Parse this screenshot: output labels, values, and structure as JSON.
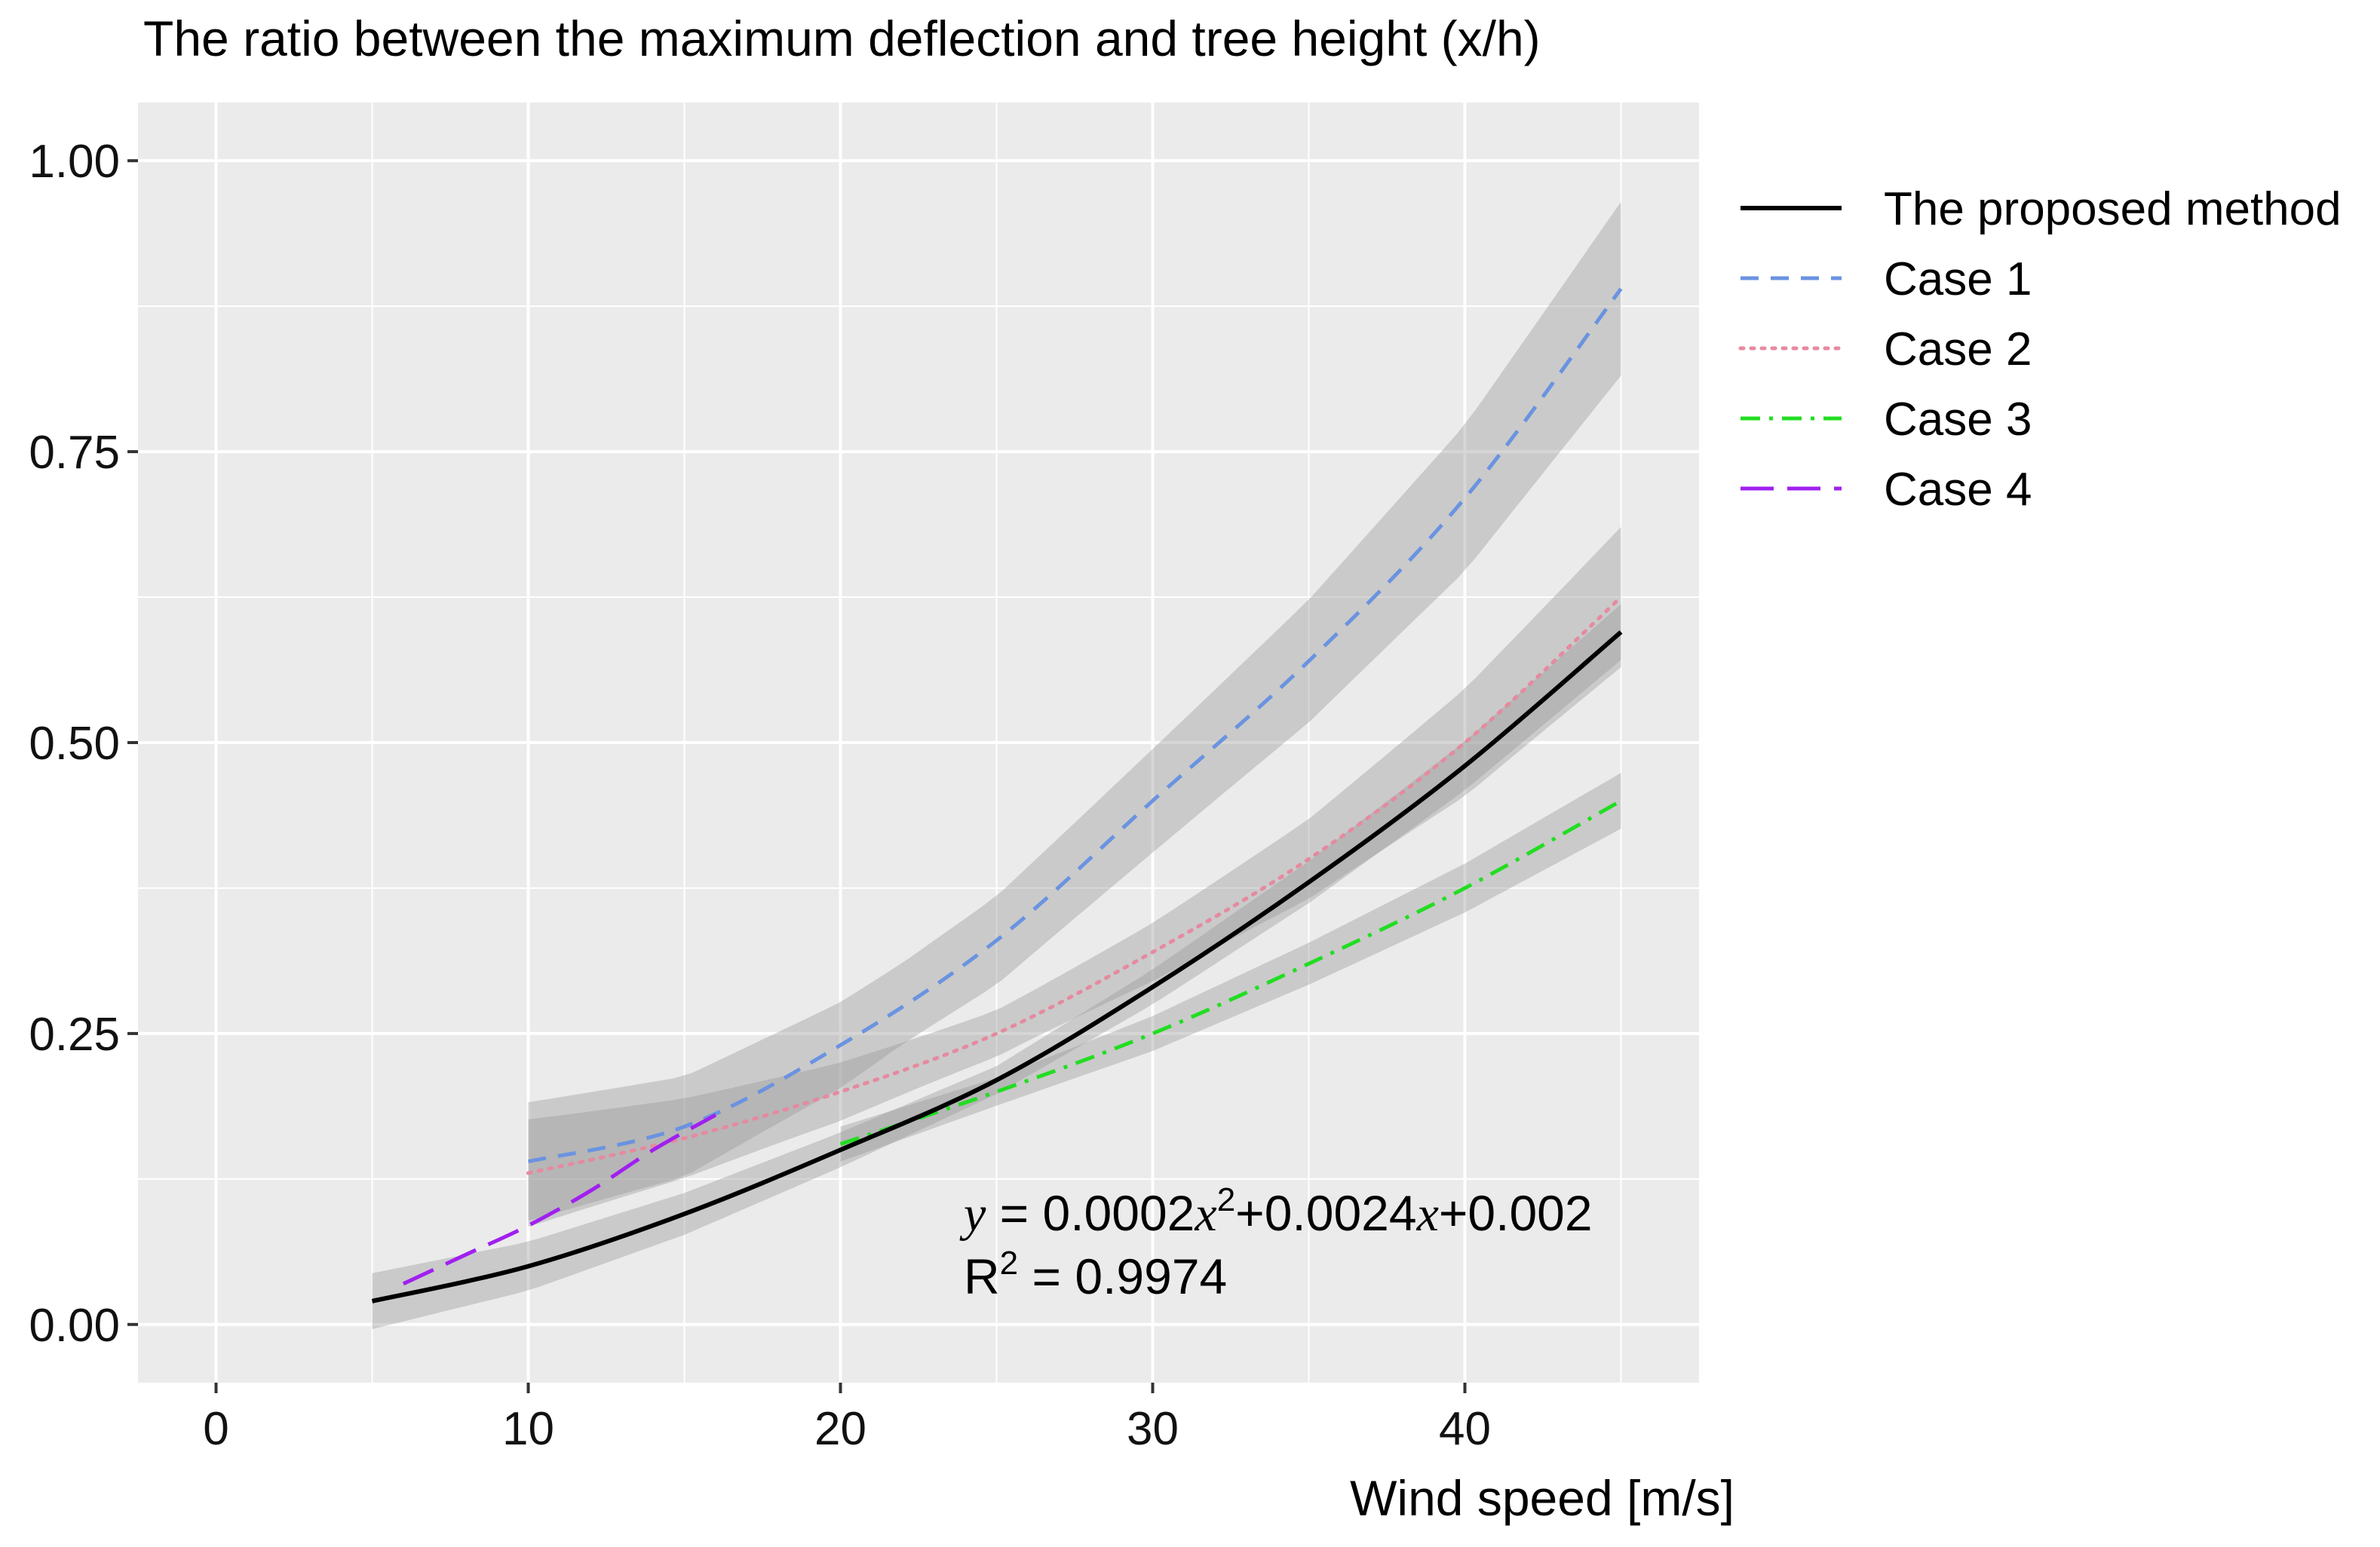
{
  "chart_data": {
    "type": "line",
    "title": "The ratio between the maximum deflection and tree height (x/h)",
    "xlabel": "Wind speed [m/s]",
    "ylabel": "",
    "xlim": [
      -2.5,
      47.5
    ],
    "ylim": [
      -0.05,
      1.05
    ],
    "x_ticks": [
      0,
      10,
      20,
      30,
      40
    ],
    "x_tick_labels": [
      "0",
      "10",
      "20",
      "30",
      "40"
    ],
    "y_ticks": [
      0,
      0.25,
      0.5,
      0.75,
      1.0
    ],
    "y_tick_labels": [
      "0.00",
      "0.25",
      "0.50",
      "0.75",
      "1.00"
    ],
    "grid": true,
    "legend_position": "right",
    "series": [
      {
        "name": "The proposed method",
        "color": "#000000",
        "line_style": "solid",
        "band": "narrow",
        "x": [
          5,
          10,
          15,
          20,
          25,
          30,
          35,
          40,
          45
        ],
        "y": [
          0.02,
          0.05,
          0.095,
          0.15,
          0.21,
          0.29,
          0.38,
          0.48,
          0.595
        ]
      },
      {
        "name": "Case 1",
        "color": "#6a93e0",
        "line_style": "dashed",
        "band": "wide",
        "x": [
          10,
          15,
          20,
          25,
          30,
          35,
          40,
          45
        ],
        "y": [
          0.14,
          0.17,
          0.24,
          0.33,
          0.45,
          0.57,
          0.71,
          0.89
        ]
      },
      {
        "name": "Case 2",
        "color": "#e58aa0",
        "line_style": "dotted",
        "band": "medium",
        "x": [
          10,
          15,
          20,
          25,
          30,
          35,
          40,
          45
        ],
        "y": [
          0.13,
          0.16,
          0.2,
          0.25,
          0.32,
          0.4,
          0.5,
          0.625
        ]
      },
      {
        "name": "Case 3",
        "color": "#22dd22",
        "line_style": "dashdot",
        "band": "narrow",
        "x": [
          20,
          25,
          30,
          35,
          40,
          45
        ],
        "y": [
          0.155,
          0.2,
          0.25,
          0.31,
          0.375,
          0.45
        ]
      },
      {
        "name": "Case 4",
        "color": "#a020f0",
        "line_style": "longdash",
        "band": "none",
        "x": [
          6,
          8,
          10,
          12,
          14,
          16
        ],
        "y": [
          0.035,
          0.06,
          0.085,
          0.115,
          0.15,
          0.18
        ]
      }
    ],
    "annotations": {
      "equation": {
        "y_var": "y",
        "eq": " = 0.0002",
        "x_var1": "x",
        "sup": "2",
        "mid": "+0.0024",
        "x_var2": "x",
        "tail": "+0.002"
      },
      "r2": {
        "r": "R",
        "sup": "2",
        "rest": " = 0.9974"
      }
    }
  }
}
